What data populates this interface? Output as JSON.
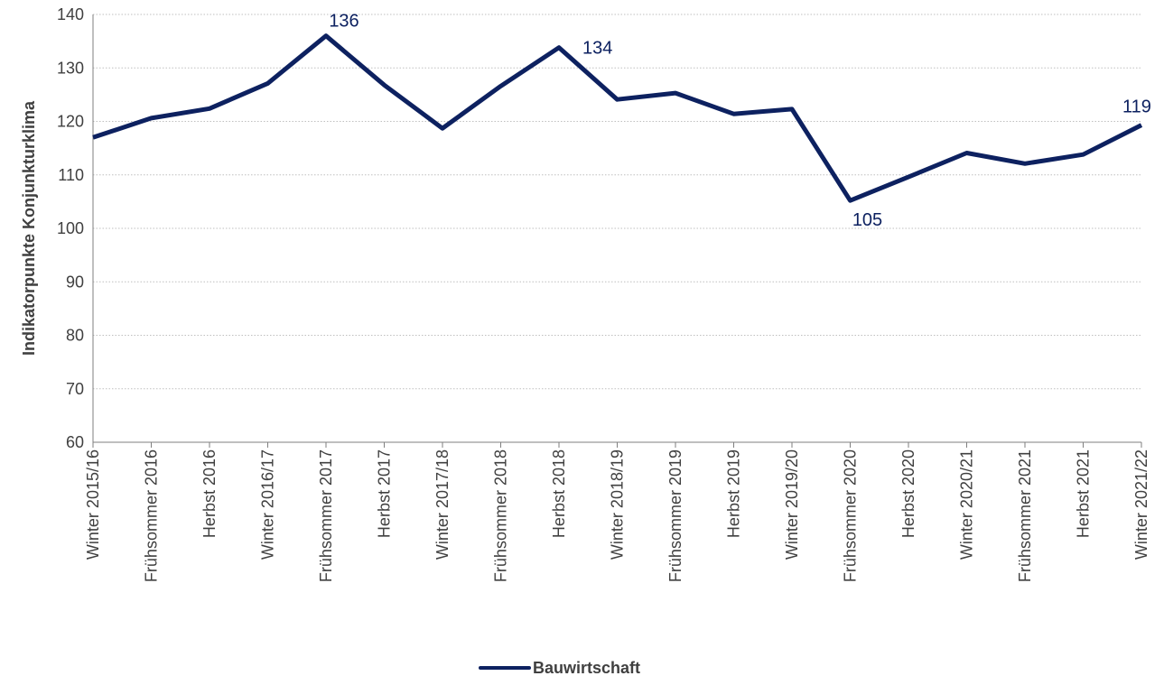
{
  "chart_data": {
    "type": "line",
    "title": "",
    "xlabel": "",
    "ylabel": "Indikatorpunkte Konjunkturklima",
    "ylim": [
      60,
      140
    ],
    "yticks": [
      60,
      70,
      80,
      90,
      100,
      110,
      120,
      130,
      140
    ],
    "grid": true,
    "legend_position": "bottom",
    "categories": [
      "Winter 2015/16",
      "Frühsommer 2016",
      "Herbst 2016",
      "Winter 2016/17",
      "Frühsommer 2017",
      "Herbst 2017",
      "Winter 2017/18",
      "Frühsommer 2018",
      "Herbst 2018",
      "Winter 2018/19",
      "Frühsommer 2019",
      "Herbst 2019",
      "Winter 2019/20",
      "Frühsommer 2020",
      "Herbst 2020",
      "Winter 2020/21",
      "Frühsommer 2021",
      "Herbst 2021",
      "Winter 2021/22"
    ],
    "series": [
      {
        "name": "Bauwirtschaft",
        "color": "#0d2160",
        "values": [
          117,
          120.6,
          122.4,
          127.1,
          136,
          126.8,
          118.7,
          126.6,
          133.8,
          124.1,
          125.3,
          121.4,
          122.3,
          105.2,
          109.6,
          114.1,
          112.1,
          113.8,
          119.3
        ]
      }
    ],
    "data_labels": [
      {
        "index": 4,
        "text": "136",
        "position": "above"
      },
      {
        "index": 8,
        "text": "134",
        "position": "right"
      },
      {
        "index": 13,
        "text": "105",
        "position": "below"
      },
      {
        "index": 18,
        "text": "119",
        "position": "above"
      }
    ]
  }
}
